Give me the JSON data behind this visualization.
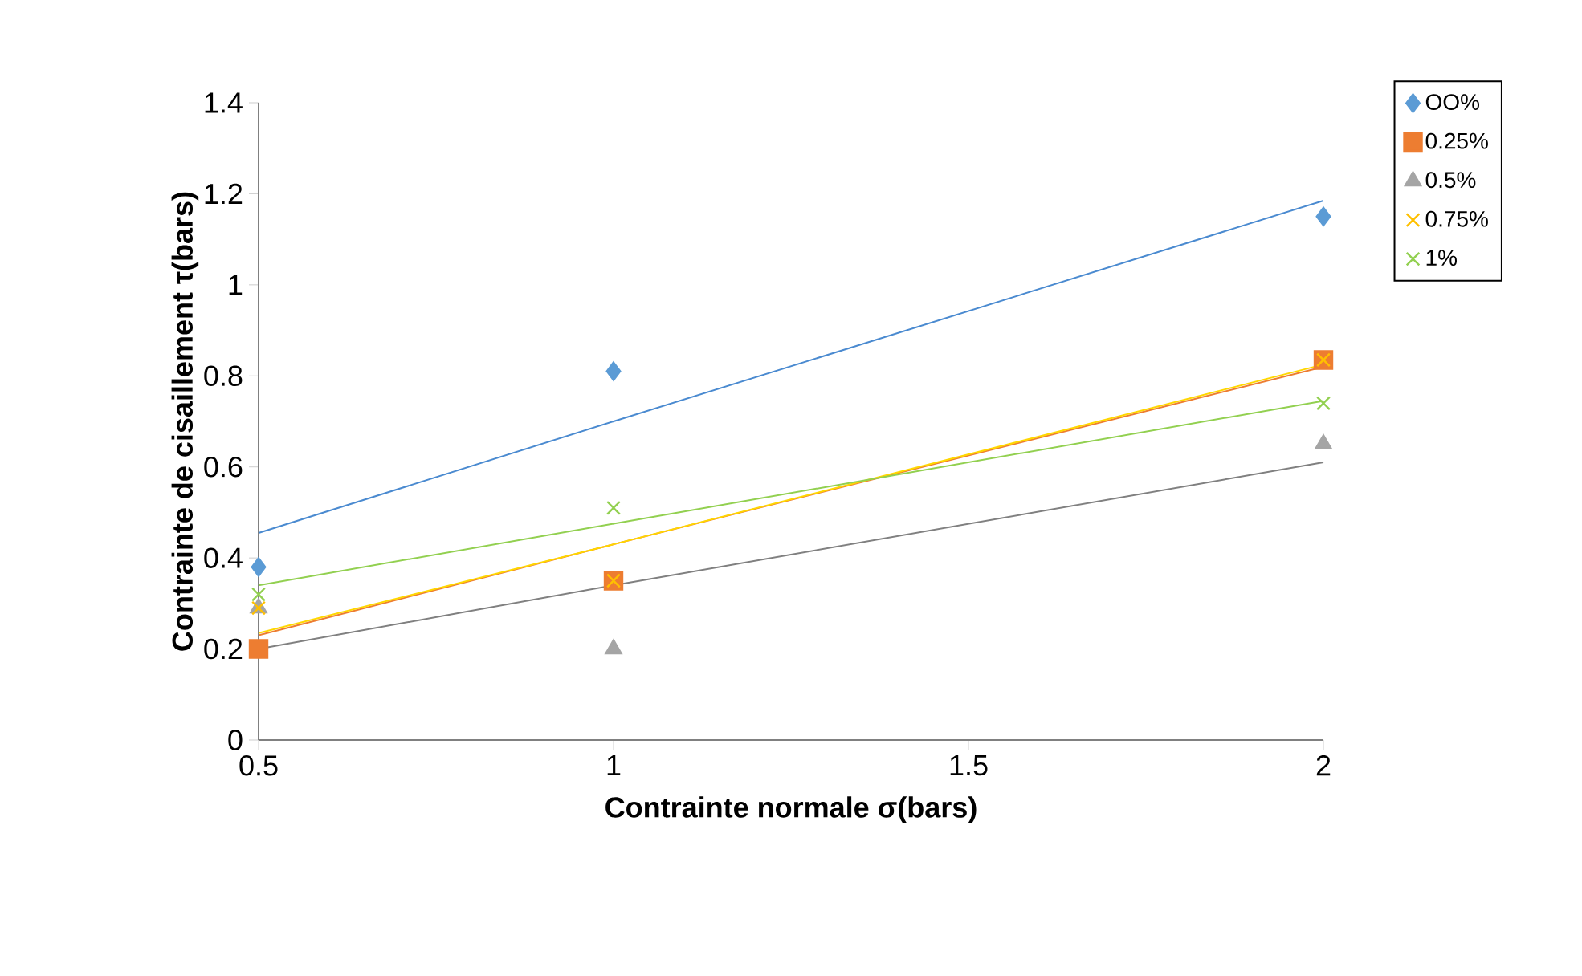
{
  "chart_data": {
    "type": "scatter",
    "xlabel": "Contrainte normale σ(bars)",
    "ylabel": "Contrainte de cisaillement τ(bars)",
    "x": [
      0.5,
      1,
      2
    ],
    "series": [
      {
        "name": "OO%",
        "color": "#5b9bd5",
        "marker": "diamond",
        "values": [
          0.38,
          0.81,
          1.15
        ]
      },
      {
        "name": "0.25%",
        "color": "#ed7d31",
        "marker": "square",
        "values": [
          0.2,
          0.35,
          0.835
        ]
      },
      {
        "name": "0.5%",
        "color": "#a5a5a5",
        "marker": "triangle",
        "values": [
          0.29,
          0.2,
          0.65
        ]
      },
      {
        "name": "0.75%",
        "color": "#ffc000",
        "marker": "cross",
        "values": [
          0.29,
          0.35,
          0.835
        ]
      },
      {
        "name": "1%",
        "color": "#92d050",
        "marker": "cross",
        "values": [
          0.32,
          0.51,
          0.74
        ]
      },
      {
        "type": "line",
        "color": "#4a8ad0",
        "x": [
          0.5,
          1,
          2
        ],
        "values": [
          0.455,
          0.7,
          1.185
        ]
      },
      {
        "type": "line",
        "color": "#ed7d31",
        "x": [
          0.5,
          1,
          2
        ],
        "values": [
          0.23,
          0.43,
          0.82
        ]
      },
      {
        "type": "line",
        "color": "#808080",
        "x": [
          0.5,
          1,
          2
        ],
        "values": [
          0.2,
          0.34,
          0.61
        ]
      },
      {
        "type": "line",
        "color": "#ffd700",
        "x": [
          0.5,
          1,
          2
        ],
        "values": [
          0.235,
          0.43,
          0.825
        ]
      },
      {
        "type": "line",
        "color": "#92d050",
        "x": [
          0.5,
          1,
          2
        ],
        "values": [
          0.34,
          0.475,
          0.745
        ]
      }
    ],
    "xlim": [
      0.5,
      2
    ],
    "xticks": [
      0.5,
      1,
      1.5,
      2
    ],
    "ylim": [
      0,
      1.4
    ],
    "yticks": [
      0,
      0.2,
      0.4,
      0.6,
      0.8,
      1,
      1.2,
      1.4
    ],
    "legend": "top right"
  }
}
